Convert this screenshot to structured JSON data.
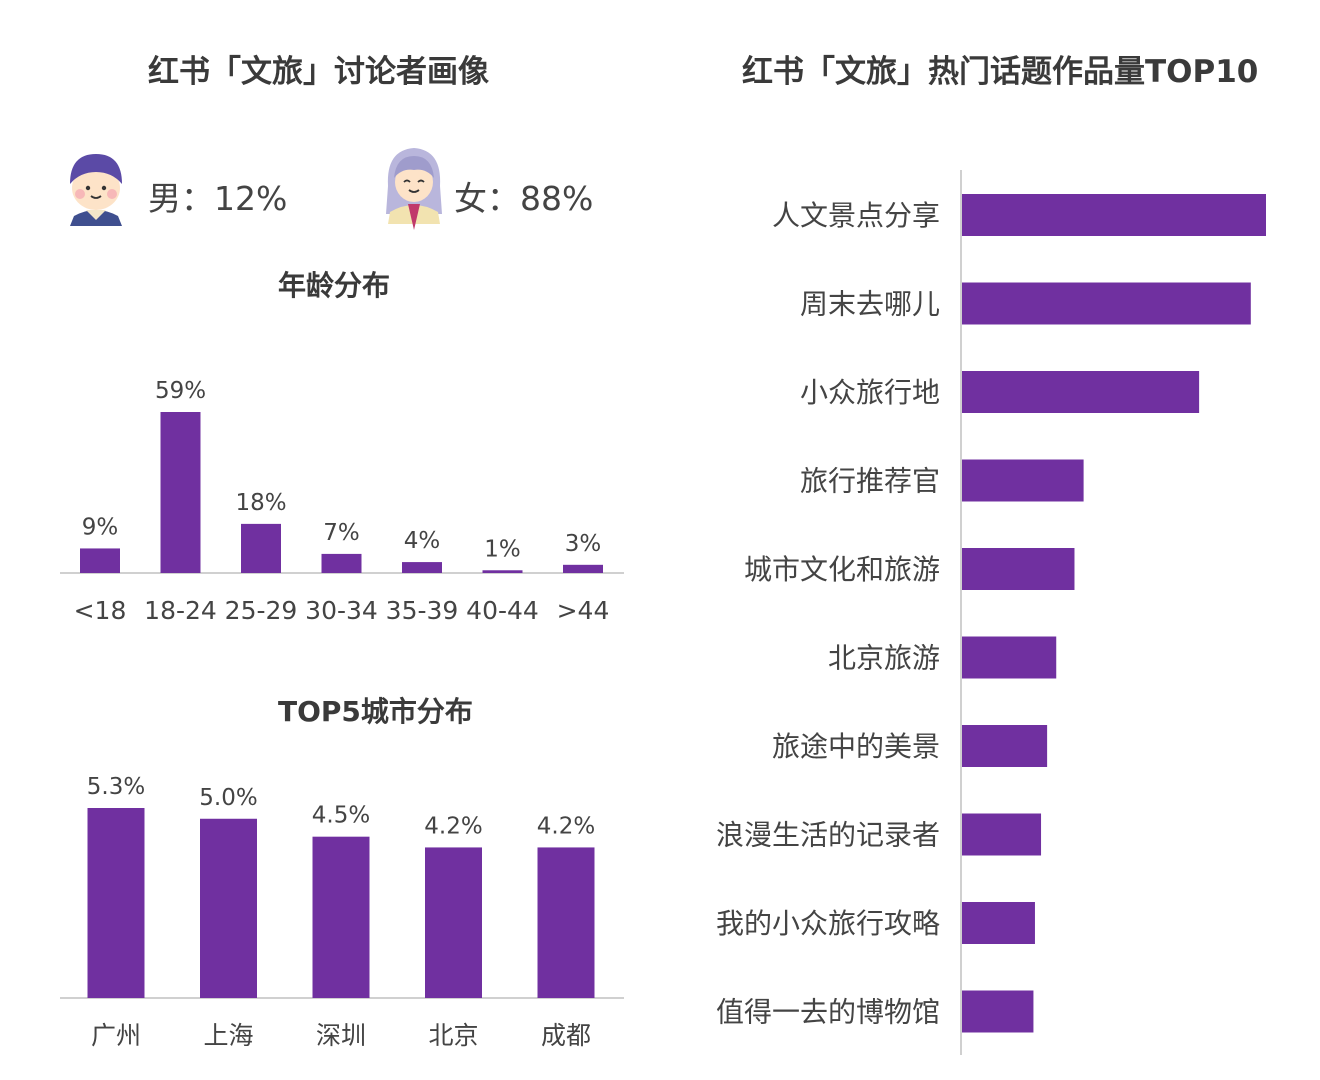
{
  "left_title": "红书「文旅」讨论者画像",
  "right_title": "红书「文旅」热门话题作品量TOP10",
  "gender": {
    "male_label": "男：12%",
    "female_label": "女：88%",
    "male": 12,
    "female": 88
  },
  "colors": {
    "bar": "#7030A0",
    "axis": "#d0d0d0",
    "text": "#444444"
  },
  "chart_data": [
    {
      "type": "bar",
      "title": "年龄分布",
      "categories": [
        "<18",
        "18-24",
        "25-29",
        "30-34",
        "35-39",
        "40-44",
        ">44"
      ],
      "values": [
        9,
        59,
        18,
        7,
        4,
        1,
        3
      ],
      "data_labels": [
        "9%",
        "59%",
        "18%",
        "7%",
        "4%",
        "1%",
        "3%"
      ],
      "unit": "%",
      "grid": false
    },
    {
      "type": "bar",
      "title": "TOP5城市分布",
      "categories": [
        "广州",
        "上海",
        "深圳",
        "北京",
        "成都"
      ],
      "values": [
        5.3,
        5.0,
        4.5,
        4.2,
        4.2
      ],
      "data_labels": [
        "5.3%",
        "5.0%",
        "4.5%",
        "4.2%",
        "4.2%"
      ],
      "unit": "%",
      "grid": false
    },
    {
      "type": "bar",
      "orientation": "horizontal",
      "title": "红书「文旅」热门话题作品量TOP10",
      "categories": [
        "人文景点分享",
        "周末去哪儿",
        "小众旅行地",
        "旅行推荐官",
        "城市文化和旅游",
        "北京旅游",
        "旅途中的美景",
        "浪漫生活的记录者",
        "我的小众旅行攻略",
        "值得一去的博物馆"
      ],
      "values": [
        100,
        95,
        78,
        40,
        37,
        31,
        28,
        26,
        24,
        23.5
      ],
      "value_scale": "relative",
      "grid": false
    }
  ]
}
